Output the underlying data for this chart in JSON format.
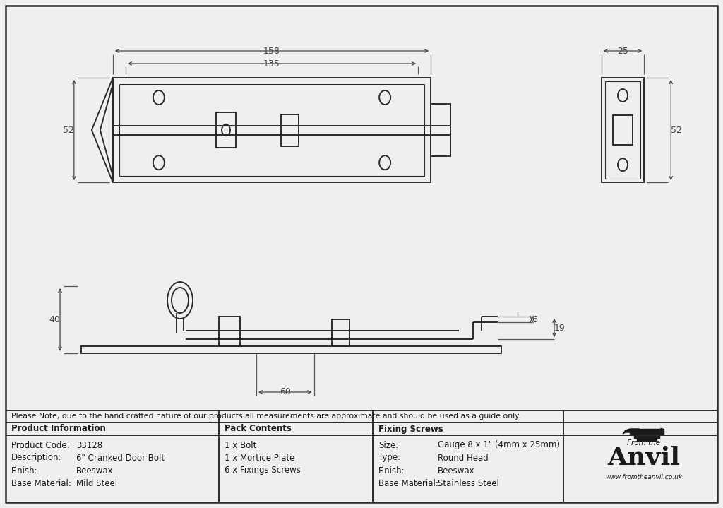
{
  "bg_color": "#f0f0f0",
  "line_color": "#2a2a2a",
  "dim_color": "#444444",
  "note_text": "Please Note, due to the hand crafted nature of our products all measurements are approximate and should be used as a guide only.",
  "product_info": {
    "header": "Product Information",
    "rows": [
      [
        "Product Code:",
        "33128"
      ],
      [
        "Description:",
        "6\" Cranked Door Bolt"
      ],
      [
        "Finish:",
        "Beeswax"
      ],
      [
        "Base Material:",
        "Mild Steel"
      ]
    ]
  },
  "pack_contents": {
    "header": "Pack Contents",
    "rows": [
      [
        "1 x Bolt"
      ],
      [
        "1 x Mortice Plate"
      ],
      [
        "6 x Fixings Screws"
      ]
    ]
  },
  "fixing_screws": {
    "header": "Fixing Screws",
    "rows": [
      [
        "Size:",
        "Gauge 8 x 1\" (4mm x 25mm)"
      ],
      [
        "Type:",
        "Round Head"
      ],
      [
        "Finish:",
        "Beeswax"
      ],
      [
        "Base Material:",
        "Stainless Steel"
      ]
    ]
  }
}
